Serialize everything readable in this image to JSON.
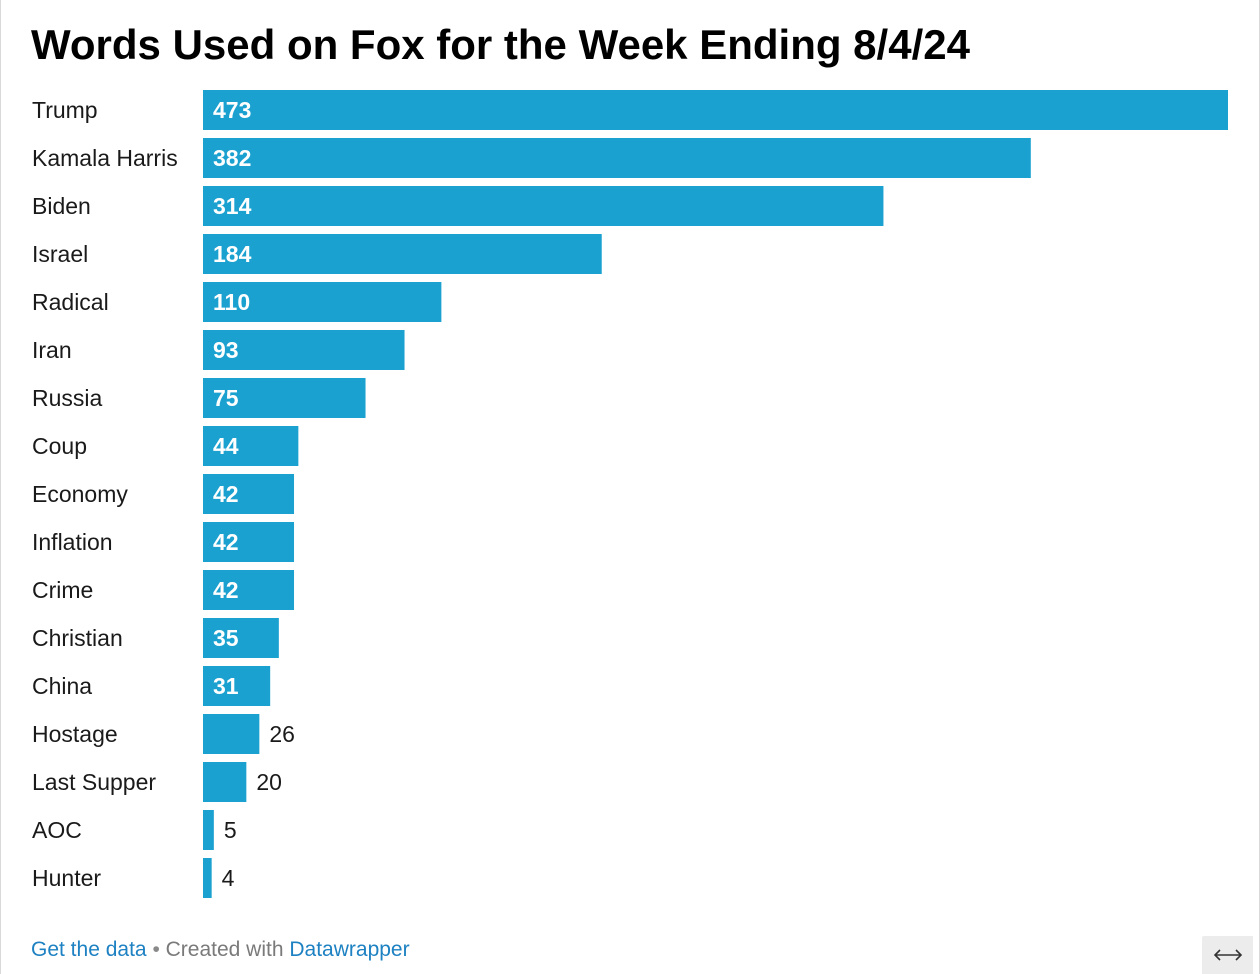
{
  "title": "Words Used on Fox for the Week Ending 8/4/24",
  "footer": {
    "get_data": "Get the data",
    "separator": "•",
    "created_with": "Created with",
    "tool": "Datawrapper"
  },
  "colors": {
    "bar": "#1ba1d0",
    "label": "#1a1a1a",
    "value_inside": "#ffffff",
    "value_outside": "#1a1a1a",
    "link": "#1d81c2"
  },
  "icons": {
    "expand": "horizontal-double-arrow-icon"
  },
  "chart_data": {
    "type": "bar",
    "orientation": "horizontal",
    "title": "Words Used on Fox for the Week Ending 8/4/24",
    "xlabel": "",
    "ylabel": "",
    "grid": false,
    "legend": "none",
    "xlim": [
      0,
      473
    ],
    "categories": [
      "Trump",
      "Kamala Harris",
      "Biden",
      "Israel",
      "Radical",
      "Iran",
      "Russia",
      "Coup",
      "Economy",
      "Inflation",
      "Crime",
      "Christian",
      "China",
      "Hostage",
      "Last Supper",
      "AOC",
      "Hunter"
    ],
    "values": [
      473,
      382,
      314,
      184,
      110,
      93,
      75,
      44,
      42,
      42,
      42,
      35,
      31,
      26,
      20,
      5,
      4
    ]
  }
}
